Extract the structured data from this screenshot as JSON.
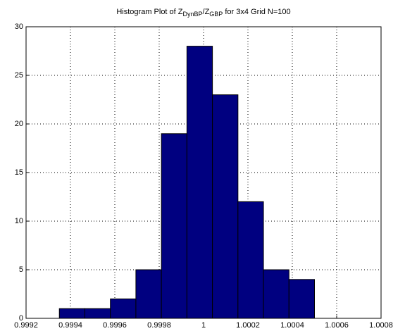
{
  "chart_data": {
    "type": "histogram",
    "title": [
      "Histogram Plot of Z",
      "DynBP",
      "/Z",
      "GBP",
      " for 3x4 Grid N=100"
    ],
    "bins": [
      0.99935,
      0.999465,
      0.99958,
      0.999695,
      0.99981,
      0.999925,
      1.00004,
      1.000155,
      1.00027,
      1.000385,
      1.0005
    ],
    "counts": [
      1,
      1,
      2,
      5,
      19,
      28,
      23,
      12,
      5,
      4
    ],
    "color": "#000080",
    "xlim": [
      0.9992,
      1.0008
    ],
    "xticks": [
      0.9992,
      0.9994,
      0.9996,
      0.9998,
      1,
      1.0002,
      1.0004,
      1.0006,
      1.0008
    ],
    "ylim": [
      0,
      30
    ],
    "yticks": [
      0,
      5,
      10,
      15,
      20,
      25,
      30
    ],
    "grid": true
  }
}
